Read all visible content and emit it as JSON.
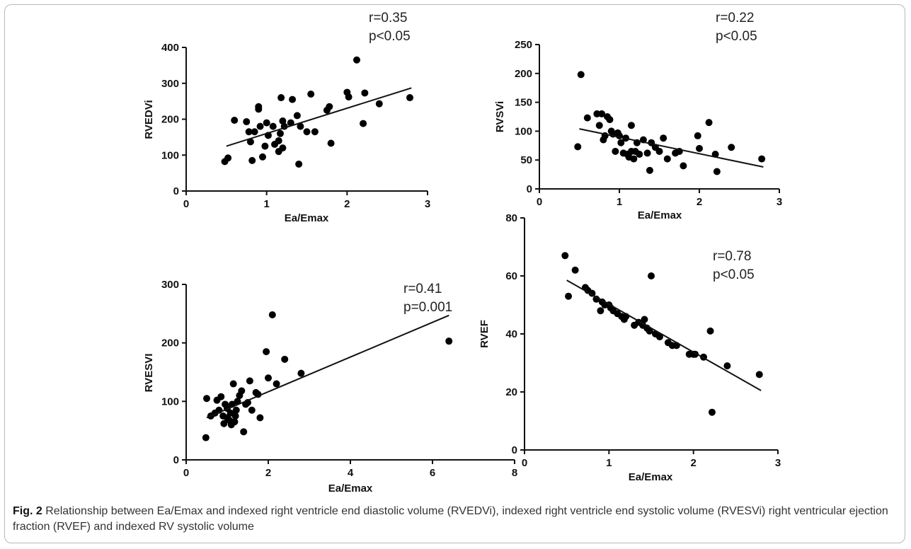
{
  "chart_data": [
    {
      "id": "rvedvi",
      "type": "scatter",
      "xlabel": "Ea/Emax",
      "ylabel": "RVEDVi",
      "xlim": [
        0,
        3
      ],
      "ylim": [
        0,
        400
      ],
      "xticks": [
        "0",
        "1",
        "2",
        "3"
      ],
      "yticks": [
        "0",
        "100",
        "200",
        "300",
        "400"
      ],
      "stat_r": "r=0.35",
      "stat_p": "p<0.05",
      "fit": [
        [
          0.5,
          125
        ],
        [
          2.8,
          287
        ]
      ],
      "points": [
        [
          0.48,
          82
        ],
        [
          0.52,
          92
        ],
        [
          0.6,
          197
        ],
        [
          0.75,
          193
        ],
        [
          0.78,
          165
        ],
        [
          0.8,
          137
        ],
        [
          0.82,
          85
        ],
        [
          0.85,
          165
        ],
        [
          0.9,
          228
        ],
        [
          0.9,
          235
        ],
        [
          0.92,
          180
        ],
        [
          0.95,
          95
        ],
        [
          0.98,
          125
        ],
        [
          1.0,
          190
        ],
        [
          1.02,
          155
        ],
        [
          1.08,
          180
        ],
        [
          1.1,
          130
        ],
        [
          1.15,
          140
        ],
        [
          1.15,
          110
        ],
        [
          1.17,
          160
        ],
        [
          1.18,
          260
        ],
        [
          1.2,
          195
        ],
        [
          1.2,
          120
        ],
        [
          1.22,
          180
        ],
        [
          1.3,
          190
        ],
        [
          1.32,
          255
        ],
        [
          1.38,
          210
        ],
        [
          1.4,
          75
        ],
        [
          1.42,
          180
        ],
        [
          1.5,
          165
        ],
        [
          1.55,
          270
        ],
        [
          1.6,
          165
        ],
        [
          1.75,
          225
        ],
        [
          1.78,
          235
        ],
        [
          1.8,
          133
        ],
        [
          2.0,
          275
        ],
        [
          2.02,
          262
        ],
        [
          2.12,
          365
        ],
        [
          2.2,
          188
        ],
        [
          2.22,
          273
        ],
        [
          2.4,
          243
        ],
        [
          2.78,
          260
        ]
      ]
    },
    {
      "id": "rvsvi",
      "type": "scatter",
      "xlabel": "Ea/Emax",
      "ylabel": "RVSVi",
      "xlim": [
        0,
        3
      ],
      "ylim": [
        0,
        250
      ],
      "xticks": [
        "0",
        "1",
        "2",
        "3"
      ],
      "yticks": [
        "0",
        "50",
        "100",
        "150",
        "200",
        "250"
      ],
      "stat_r": "r=0.22",
      "stat_p": "p<0.05",
      "fit": [
        [
          0.5,
          104
        ],
        [
          2.8,
          38
        ]
      ],
      "points": [
        [
          0.48,
          73
        ],
        [
          0.52,
          198
        ],
        [
          0.6,
          123
        ],
        [
          0.72,
          130
        ],
        [
          0.75,
          110
        ],
        [
          0.78,
          130
        ],
        [
          0.8,
          85
        ],
        [
          0.82,
          92
        ],
        [
          0.85,
          125
        ],
        [
          0.88,
          120
        ],
        [
          0.9,
          100
        ],
        [
          0.92,
          95
        ],
        [
          0.95,
          65
        ],
        [
          0.98,
          97
        ],
        [
          1.0,
          92
        ],
        [
          1.02,
          80
        ],
        [
          1.05,
          62
        ],
        [
          1.08,
          88
        ],
        [
          1.1,
          60
        ],
        [
          1.12,
          55
        ],
        [
          1.15,
          65
        ],
        [
          1.15,
          110
        ],
        [
          1.18,
          52
        ],
        [
          1.2,
          65
        ],
        [
          1.22,
          80
        ],
        [
          1.25,
          60
        ],
        [
          1.3,
          85
        ],
        [
          1.35,
          62
        ],
        [
          1.38,
          32
        ],
        [
          1.4,
          80
        ],
        [
          1.45,
          72
        ],
        [
          1.5,
          65
        ],
        [
          1.55,
          88
        ],
        [
          1.6,
          52
        ],
        [
          1.7,
          62
        ],
        [
          1.75,
          65
        ],
        [
          1.8,
          40
        ],
        [
          1.98,
          92
        ],
        [
          2.0,
          70
        ],
        [
          2.12,
          115
        ],
        [
          2.2,
          60
        ],
        [
          2.22,
          30
        ],
        [
          2.4,
          72
        ],
        [
          2.78,
          52
        ]
      ]
    },
    {
      "id": "rvesvi",
      "type": "scatter",
      "xlabel": "Ea/Emax",
      "ylabel": "RVESVI",
      "xlim": [
        0,
        8
      ],
      "ylim": [
        0,
        300
      ],
      "xticks": [
        "0",
        "2",
        "4",
        "6",
        "8"
      ],
      "yticks": [
        "0",
        "100",
        "200",
        "300"
      ],
      "stat_r": "r=0.41",
      "stat_p": "p=0.001",
      "fit": [
        [
          0.5,
          72
        ],
        [
          6.4,
          247
        ]
      ],
      "points": [
        [
          0.48,
          38
        ],
        [
          0.5,
          105
        ],
        [
          0.6,
          75
        ],
        [
          0.7,
          80
        ],
        [
          0.75,
          102
        ],
        [
          0.8,
          85
        ],
        [
          0.85,
          108
        ],
        [
          0.9,
          75
        ],
        [
          0.92,
          62
        ],
        [
          0.95,
          95
        ],
        [
          1.0,
          88
        ],
        [
          1.0,
          72
        ],
        [
          1.05,
          68
        ],
        [
          1.08,
          80
        ],
        [
          1.1,
          60
        ],
        [
          1.12,
          95
        ],
        [
          1.15,
          130
        ],
        [
          1.18,
          65
        ],
        [
          1.2,
          75
        ],
        [
          1.22,
          85
        ],
        [
          1.25,
          100
        ],
        [
          1.3,
          110
        ],
        [
          1.35,
          118
        ],
        [
          1.4,
          48
        ],
        [
          1.45,
          95
        ],
        [
          1.5,
          98
        ],
        [
          1.55,
          135
        ],
        [
          1.6,
          85
        ],
        [
          1.7,
          115
        ],
        [
          1.75,
          112
        ],
        [
          1.8,
          72
        ],
        [
          1.95,
          185
        ],
        [
          2.0,
          140
        ],
        [
          2.1,
          248
        ],
        [
          2.2,
          130
        ],
        [
          2.4,
          172
        ],
        [
          2.8,
          148
        ],
        [
          6.4,
          203
        ]
      ]
    },
    {
      "id": "rvef",
      "type": "scatter",
      "xlabel": "Ea/Emax",
      "ylabel": "RVEF",
      "xlim": [
        0,
        3
      ],
      "ylim": [
        0,
        80
      ],
      "xticks": [
        "0",
        "1",
        "2",
        "3"
      ],
      "yticks": [
        "0",
        "20",
        "40",
        "60",
        "80"
      ],
      "stat_r": "r=0.78",
      "stat_p": "p<0.05",
      "fit": [
        [
          0.5,
          58.5
        ],
        [
          2.8,
          20.5
        ]
      ],
      "points": [
        [
          0.48,
          67
        ],
        [
          0.52,
          53
        ],
        [
          0.6,
          62
        ],
        [
          0.72,
          56
        ],
        [
          0.75,
          55
        ],
        [
          0.8,
          54
        ],
        [
          0.85,
          52
        ],
        [
          0.9,
          48
        ],
        [
          0.92,
          51
        ],
        [
          0.95,
          50
        ],
        [
          1.0,
          50
        ],
        [
          1.02,
          49
        ],
        [
          1.05,
          48
        ],
        [
          1.1,
          47
        ],
        [
          1.15,
          46
        ],
        [
          1.18,
          45
        ],
        [
          1.2,
          46
        ],
        [
          1.3,
          43
        ],
        [
          1.35,
          44
        ],
        [
          1.4,
          43
        ],
        [
          1.42,
          45
        ],
        [
          1.45,
          42
        ],
        [
          1.48,
          41
        ],
        [
          1.5,
          60
        ],
        [
          1.55,
          40
        ],
        [
          1.6,
          39
        ],
        [
          1.7,
          37
        ],
        [
          1.75,
          36
        ],
        [
          1.8,
          36
        ],
        [
          1.95,
          33
        ],
        [
          2.0,
          33
        ],
        [
          2.02,
          33
        ],
        [
          2.12,
          32
        ],
        [
          2.2,
          41
        ],
        [
          2.22,
          13
        ],
        [
          2.4,
          29
        ],
        [
          2.78,
          26
        ]
      ]
    }
  ],
  "caption": {
    "label": "Fig. 2",
    "text": "Relationship between Ea/Emax and indexed right ventricle end diastolic volume (RVEDVi), indexed right ventricle end systolic volume (RVESVi) right ventricular ejection fraction (RVEF) and indexed RV systolic volume"
  }
}
